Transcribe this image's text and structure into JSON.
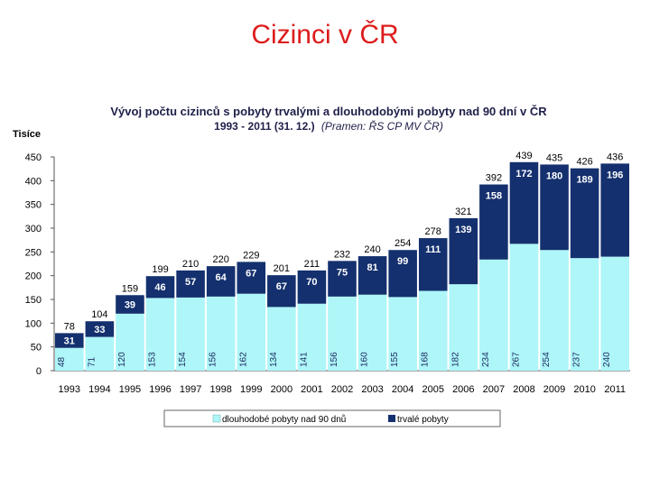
{
  "page": {
    "title": "Cizinci v ČR"
  },
  "chart_data": {
    "type": "bar",
    "stacked": true,
    "title": "Vývoj počtu cizinců s pobyty trvalými a dlouhodobými pobyty nad 90 dní v ČR",
    "subtitle_main": "1993 - 2011 (31. 12.)",
    "subtitle_source": "(Pramen: ŘS CP MV ČR)",
    "ylabel": "Tisíce",
    "ylim": [
      0,
      450
    ],
    "yticks": [
      0,
      50,
      100,
      150,
      200,
      250,
      300,
      350,
      400,
      450
    ],
    "categories": [
      "1993",
      "1994",
      "1995",
      "1996",
      "1997",
      "1998",
      "1999",
      "2000",
      "2001",
      "2002",
      "2003",
      "2004",
      "2005",
      "2006",
      "2007",
      "2008",
      "2009",
      "2010",
      "2011"
    ],
    "series": [
      {
        "name": "dlouhodobé pobyty nad 90 dnů",
        "color": "#aef6f8",
        "label_color": "#1d2a62",
        "values": [
          48,
          71,
          120,
          153,
          154,
          156,
          162,
          134,
          141,
          156,
          160,
          155,
          168,
          182,
          234,
          267,
          254,
          237,
          240
        ]
      },
      {
        "name": "trvalé pobyty",
        "color": "#14306e",
        "label_color": "#ffffff",
        "values": [
          31,
          33,
          39,
          46,
          57,
          64,
          67,
          67,
          70,
          75,
          81,
          99,
          111,
          139,
          158,
          172,
          180,
          189,
          196
        ]
      }
    ],
    "totals": [
      78,
      104,
      159,
      199,
      210,
      220,
      229,
      201,
      211,
      232,
      240,
      254,
      278,
      321,
      392,
      439,
      435,
      426,
      436
    ],
    "legend_position": "bottom",
    "grid": false
  }
}
